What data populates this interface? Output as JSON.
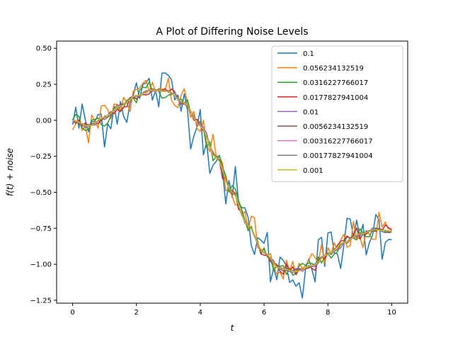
{
  "chart_data": {
    "type": "line",
    "title": "A Plot of Differing Noise Levels",
    "xlabel": "t",
    "ylabel": "f(t) + noise",
    "xlim": [
      -0.5,
      10.5
    ],
    "ylim": [
      -1.27,
      0.55
    ],
    "xticks": [
      0,
      2,
      4,
      6,
      8,
      10
    ],
    "xtick_labels": [
      "0",
      "2",
      "4",
      "6",
      "8",
      "10"
    ],
    "yticks": [
      0.5,
      0.25,
      0.0,
      -0.25,
      -0.5,
      -0.75,
      -1.0,
      -1.25
    ],
    "ytick_labels": [
      "0.50",
      "0.25",
      "0.00",
      "−0.25",
      "−0.50",
      "−0.75",
      "−1.00",
      "−1.25"
    ],
    "legend_position": "top-right",
    "grid": false,
    "x": [
      0,
      0.5,
      1,
      1.5,
      2,
      2.5,
      3,
      3.5,
      4,
      4.5,
      5,
      5.5,
      6,
      6.5,
      7,
      7.5,
      8,
      8.5,
      9,
      9.5,
      10
    ],
    "underlying_values": [
      0.0,
      -0.04,
      0.02,
      0.1,
      0.17,
      0.21,
      0.2,
      0.12,
      -0.04,
      -0.26,
      -0.5,
      -0.73,
      -0.92,
      -1.03,
      -1.05,
      -1.01,
      -0.93,
      -0.85,
      -0.79,
      -0.76,
      -0.77
    ],
    "series": [
      {
        "name": "0.1",
        "color": "#1f77b4",
        "noise": 0.1
      },
      {
        "name": "0.056234132519",
        "color": "#ff7f0e",
        "noise": 0.056234132519
      },
      {
        "name": "0.0316227766017",
        "color": "#2ca02c",
        "noise": 0.0316227766017
      },
      {
        "name": "0.0177827941004",
        "color": "#d62728",
        "noise": 0.0177827941004
      },
      {
        "name": "0.01",
        "color": "#9467bd",
        "noise": 0.01
      },
      {
        "name": "0.0056234132519",
        "color": "#8c564b",
        "noise": 0.0056234132519
      },
      {
        "name": "0.00316227766017",
        "color": "#e377c2",
        "noise": 0.00316227766017
      },
      {
        "name": "0.00177827941004",
        "color": "#7f7f7f",
        "noise": 0.00177827941004
      },
      {
        "name": "0.001",
        "color": "#bcbd22",
        "noise": 0.001
      }
    ]
  }
}
